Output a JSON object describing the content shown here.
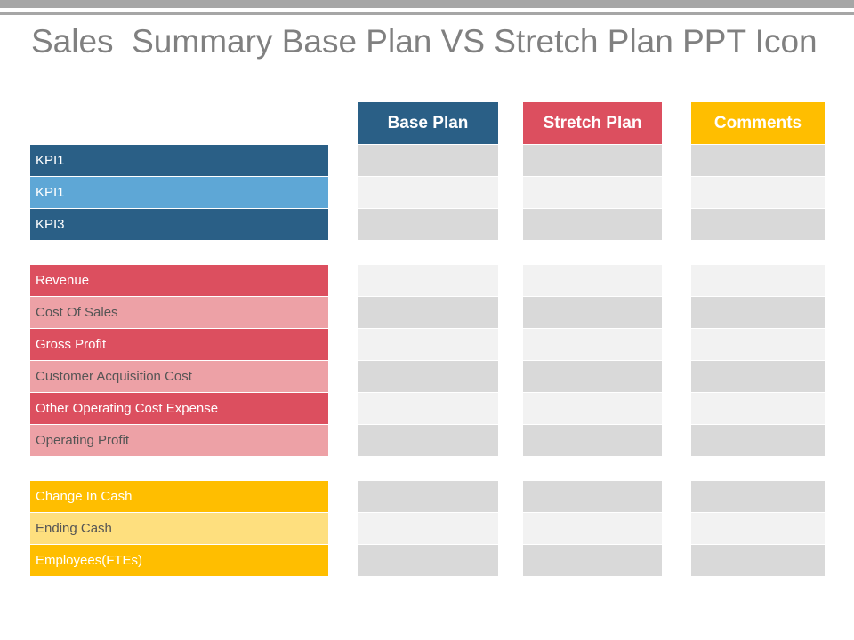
{
  "slide": {
    "title": "Sales  Summary Base Plan VS Stretch Plan PPT Icon"
  },
  "columns": [
    {
      "label": "Base Plan",
      "color": "#2a5f86"
    },
    {
      "label": "Stretch Plan",
      "color": "#dc4f5f"
    },
    {
      "label": "Comments",
      "color": "#ffbe00"
    }
  ],
  "groups": [
    {
      "rows": [
        {
          "label": "KPI1",
          "bg": "#2a5f86",
          "fg": "#ffffff"
        },
        {
          "label": "KPI1",
          "bg": "#5ea7d6",
          "fg": "#ffffff"
        },
        {
          "label": "KPI3",
          "bg": "#2a5f86",
          "fg": "#ffffff"
        }
      ]
    },
    {
      "rows": [
        {
          "label": "Revenue",
          "bg": "#dc4f5f",
          "fg": "#ffffff"
        },
        {
          "label": "Cost Of Sales",
          "bg": "#eda1a6",
          "fg": "#555555"
        },
        {
          "label": "Gross Profit",
          "bg": "#dc4f5f",
          "fg": "#ffffff"
        },
        {
          "label": "Customer Acquisition Cost",
          "bg": "#eda1a6",
          "fg": "#555555"
        },
        {
          "label": "Other Operating Cost Expense",
          "bg": "#dc4f5f",
          "fg": "#ffffff"
        },
        {
          "label": "Operating Profit",
          "bg": "#eda1a6",
          "fg": "#555555"
        }
      ]
    },
    {
      "rows": [
        {
          "label": "Change In Cash",
          "bg": "#ffbe00",
          "fg": "#ffffff"
        },
        {
          "label": "Ending Cash",
          "bg": "#fedf7e",
          "fg": "#555555"
        },
        {
          "label": "Employees(FTEs)",
          "bg": "#ffbe00",
          "fg": "#ffffff"
        }
      ]
    }
  ],
  "cell_colors": {
    "dark": "#d9d9d9",
    "light": "#f2f2f2"
  }
}
